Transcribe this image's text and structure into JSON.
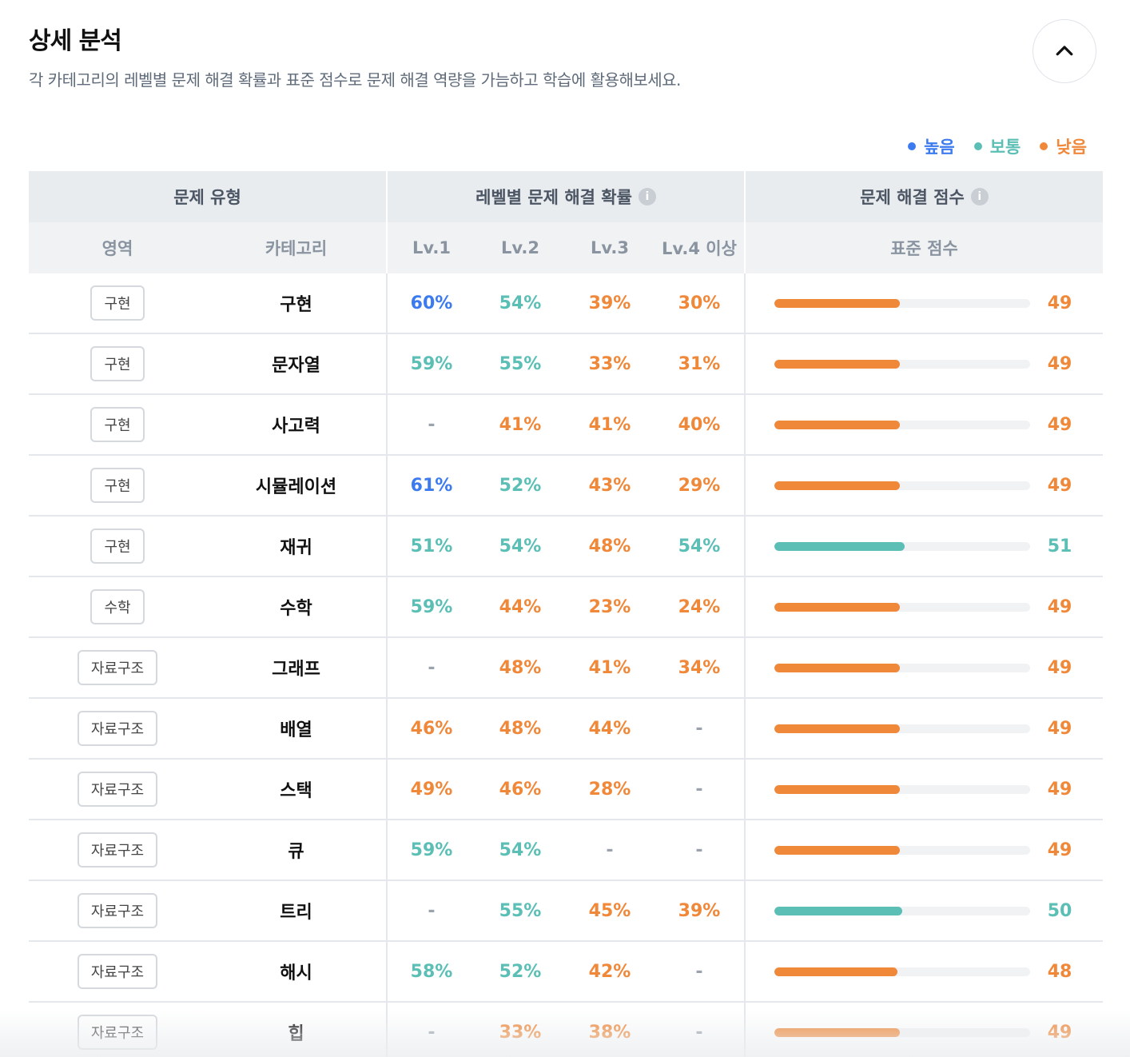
{
  "header": {
    "title": "상세 분석",
    "subtitle": "각 카테고리의 레벨별 문제 해결 확률과 표준 점수로 문제 해결 역량을 가늠하고 학습에 활용해보세요."
  },
  "collapse_button": {
    "icon": "chevron-up-icon"
  },
  "colors": {
    "high": "#3b7bef",
    "mid": "#5bbfb5",
    "low": "#f0883a"
  },
  "legend": [
    {
      "label": "높음",
      "level": "high"
    },
    {
      "label": "보통",
      "level": "mid"
    },
    {
      "label": "낮음",
      "level": "low"
    }
  ],
  "table": {
    "group_headers": {
      "type": "문제 유형",
      "prob": "레벨별 문제 해결 확률",
      "score": "문제 해결 점수"
    },
    "sub_headers": {
      "area": "영역",
      "category": "카테고리",
      "lv1": "Lv.1",
      "lv2": "Lv.2",
      "lv3": "Lv.3",
      "lv4": "Lv.4 이상",
      "std": "표준 점수"
    },
    "rows": [
      {
        "area": "구현",
        "category": "구현",
        "lv": [
          [
            "60%",
            "high"
          ],
          [
            "54%",
            "mid"
          ],
          [
            "39%",
            "low"
          ],
          [
            "30%",
            "low"
          ]
        ],
        "score": "49",
        "score_level": "low",
        "fill": 0.49
      },
      {
        "area": "구현",
        "category": "문자열",
        "lv": [
          [
            "59%",
            "mid"
          ],
          [
            "55%",
            "mid"
          ],
          [
            "33%",
            "low"
          ],
          [
            "31%",
            "low"
          ]
        ],
        "score": "49",
        "score_level": "low",
        "fill": 0.49
      },
      {
        "area": "구현",
        "category": "사고력",
        "lv": [
          [
            "-",
            "none"
          ],
          [
            "41%",
            "low"
          ],
          [
            "41%",
            "low"
          ],
          [
            "40%",
            "low"
          ]
        ],
        "score": "49",
        "score_level": "low",
        "fill": 0.49
      },
      {
        "area": "구현",
        "category": "시뮬레이션",
        "lv": [
          [
            "61%",
            "high"
          ],
          [
            "52%",
            "mid"
          ],
          [
            "43%",
            "low"
          ],
          [
            "29%",
            "low"
          ]
        ],
        "score": "49",
        "score_level": "low",
        "fill": 0.49
      },
      {
        "area": "구현",
        "category": "재귀",
        "lv": [
          [
            "51%",
            "mid"
          ],
          [
            "54%",
            "mid"
          ],
          [
            "48%",
            "low"
          ],
          [
            "54%",
            "mid"
          ]
        ],
        "score": "51",
        "score_level": "mid",
        "fill": 0.51
      },
      {
        "area": "수학",
        "category": "수학",
        "lv": [
          [
            "59%",
            "mid"
          ],
          [
            "44%",
            "low"
          ],
          [
            "23%",
            "low"
          ],
          [
            "24%",
            "low"
          ]
        ],
        "score": "49",
        "score_level": "low",
        "fill": 0.49
      },
      {
        "area": "자료구조",
        "category": "그래프",
        "lv": [
          [
            "-",
            "none"
          ],
          [
            "48%",
            "low"
          ],
          [
            "41%",
            "low"
          ],
          [
            "34%",
            "low"
          ]
        ],
        "score": "49",
        "score_level": "low",
        "fill": 0.49
      },
      {
        "area": "자료구조",
        "category": "배열",
        "lv": [
          [
            "46%",
            "low"
          ],
          [
            "48%",
            "low"
          ],
          [
            "44%",
            "low"
          ],
          [
            "-",
            "none"
          ]
        ],
        "score": "49",
        "score_level": "low",
        "fill": 0.49
      },
      {
        "area": "자료구조",
        "category": "스택",
        "lv": [
          [
            "49%",
            "low"
          ],
          [
            "46%",
            "low"
          ],
          [
            "28%",
            "low"
          ],
          [
            "-",
            "none"
          ]
        ],
        "score": "49",
        "score_level": "low",
        "fill": 0.49
      },
      {
        "area": "자료구조",
        "category": "큐",
        "lv": [
          [
            "59%",
            "mid"
          ],
          [
            "54%",
            "mid"
          ],
          [
            "-",
            "none"
          ],
          [
            "-",
            "none"
          ]
        ],
        "score": "49",
        "score_level": "low",
        "fill": 0.49
      },
      {
        "area": "자료구조",
        "category": "트리",
        "lv": [
          [
            "-",
            "none"
          ],
          [
            "55%",
            "mid"
          ],
          [
            "45%",
            "low"
          ],
          [
            "39%",
            "low"
          ]
        ],
        "score": "50",
        "score_level": "mid",
        "fill": 0.5
      },
      {
        "area": "자료구조",
        "category": "해시",
        "lv": [
          [
            "58%",
            "mid"
          ],
          [
            "52%",
            "mid"
          ],
          [
            "42%",
            "low"
          ],
          [
            "-",
            "none"
          ]
        ],
        "score": "48",
        "score_level": "low",
        "fill": 0.48
      },
      {
        "area": "자료구조",
        "category": "힙",
        "lv": [
          [
            "-",
            "none"
          ],
          [
            "33%",
            "low"
          ],
          [
            "38%",
            "low"
          ],
          [
            "-",
            "none"
          ]
        ],
        "score": "49",
        "score_level": "low",
        "fill": 0.49
      }
    ]
  }
}
